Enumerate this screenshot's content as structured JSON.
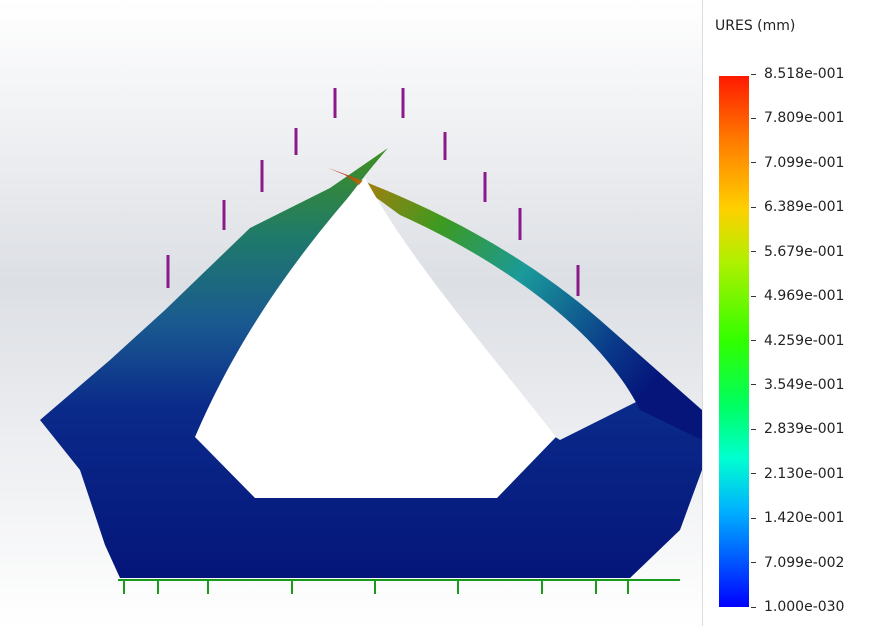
{
  "legend": {
    "title": "URES (mm)",
    "labels": [
      "8.518e-001",
      "7.809e-001",
      "7.099e-001",
      "6.389e-001",
      "5.679e-001",
      "4.969e-001",
      "4.259e-001",
      "3.549e-001",
      "2.839e-001",
      "2.130e-001",
      "1.420e-001",
      "7.099e-002",
      "1.000e-030"
    ]
  }
}
